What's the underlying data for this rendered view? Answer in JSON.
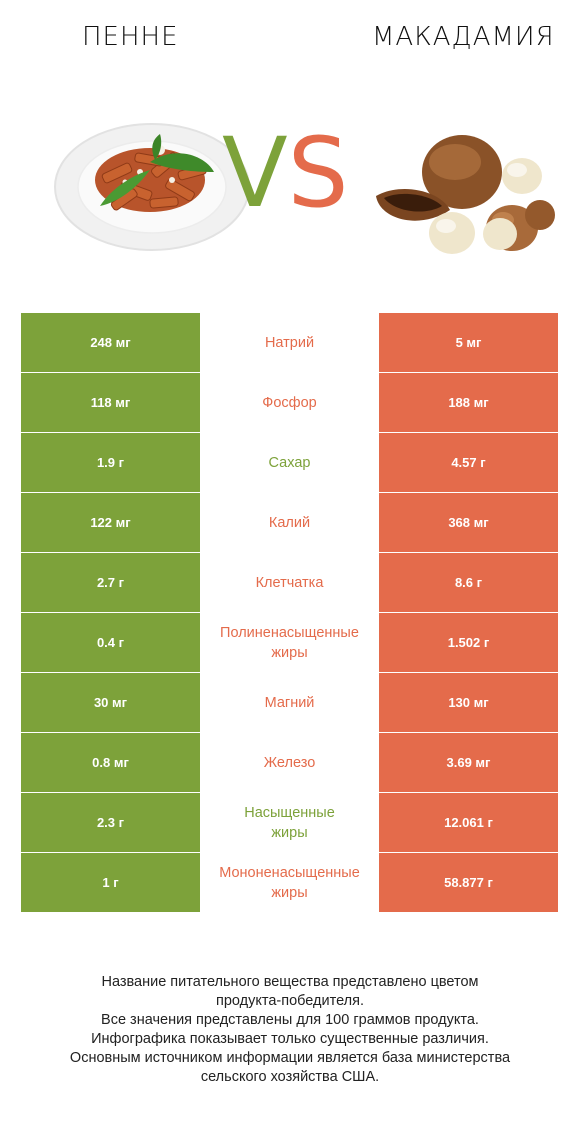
{
  "header": {
    "left_title": "ПЕННЕ",
    "right_title": "МАКАДАМИЯ",
    "vs_v": "V",
    "vs_s": "S"
  },
  "colors": {
    "left": "#7da23a",
    "right": "#e46b4b"
  },
  "rows": [
    {
      "left": "248 мг",
      "name": "Натрий",
      "right": "5 мг",
      "winner": "right"
    },
    {
      "left": "118 мг",
      "name": "Фосфор",
      "right": "188 мг",
      "winner": "right"
    },
    {
      "left": "1.9 г",
      "name": "Сахар",
      "right": "4.57 г",
      "winner": "left"
    },
    {
      "left": "122 мг",
      "name": "Калий",
      "right": "368 мг",
      "winner": "right"
    },
    {
      "left": "2.7 г",
      "name": "Клетчатка",
      "right": "8.6 г",
      "winner": "right"
    },
    {
      "left": "0.4 г",
      "name": "Полиненасыщенные\nжиры",
      "right": "1.502 г",
      "winner": "right"
    },
    {
      "left": "30 мг",
      "name": "Магний",
      "right": "130 мг",
      "winner": "right"
    },
    {
      "left": "0.8 мг",
      "name": "Железо",
      "right": "3.69 мг",
      "winner": "right"
    },
    {
      "left": "2.3 г",
      "name": "Насыщенные\nжиры",
      "right": "12.061 г",
      "winner": "left"
    },
    {
      "left": "1 г",
      "name": "Мононенасыщенные\nжиры",
      "right": "58.877 г",
      "winner": "right"
    }
  ],
  "footer": {
    "line1": "Название питательного вещества представлено цветом",
    "line2": "продукта-победителя.",
    "line3": "Все значения представлены для 100 граммов продукта.",
    "line4": "Инфографика показывает только существенные различия.",
    "line5": "Основным источником информации является база министерства",
    "line6": "сельского хозяйства США."
  }
}
